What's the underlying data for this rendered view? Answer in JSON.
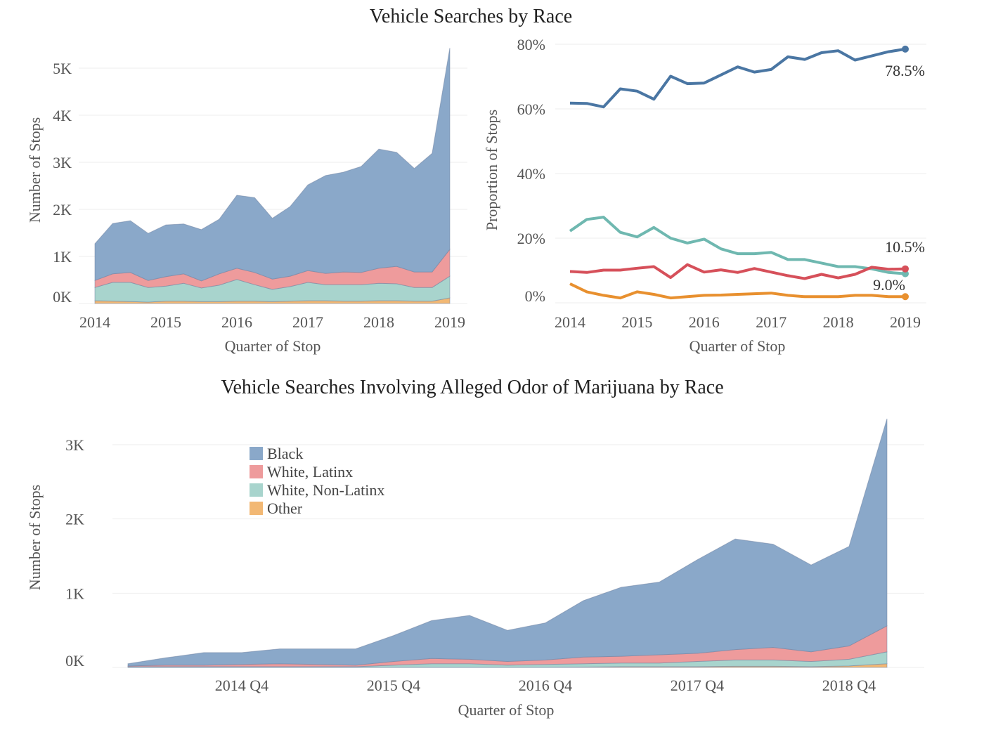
{
  "colors": {
    "Black": "#8aa8c9",
    "White, Latinx": "#ee9b9c",
    "White, Non-Latinx": "#a8d4cd",
    "Other": "#f2b874",
    "line_Black": "#4a76a3",
    "line_White, Latinx": "#d6505a",
    "line_White, Non-Latinx": "#6fb8b0",
    "line_Other": "#e8902f"
  },
  "chart_data": [
    {
      "id": "counts",
      "type": "area",
      "stacked": true,
      "title": "Vehicle Searches by Race",
      "xlabel": "Quarter of Stop",
      "ylabel": "Number of Stops",
      "x": [
        "2014 Q1",
        "2014 Q2",
        "2014 Q3",
        "2014 Q4",
        "2015 Q1",
        "2015 Q2",
        "2015 Q3",
        "2015 Q4",
        "2016 Q1",
        "2016 Q2",
        "2016 Q3",
        "2016 Q4",
        "2017 Q1",
        "2017 Q2",
        "2017 Q3",
        "2017 Q4",
        "2018 Q1",
        "2018 Q2",
        "2018 Q3",
        "2018 Q4",
        "2019 Q1"
      ],
      "x_ticks": [
        "2014",
        "2015",
        "2016",
        "2017",
        "2018",
        "2019"
      ],
      "y_ticks": [
        "0K",
        "1K",
        "2K",
        "3K",
        "4K",
        "5K"
      ],
      "ylim": [
        0,
        5600
      ],
      "grid": true,
      "series": [
        {
          "name": "Other",
          "values": [
            60,
            50,
            40,
            30,
            50,
            50,
            40,
            40,
            50,
            50,
            40,
            50,
            60,
            60,
            50,
            50,
            60,
            60,
            50,
            50,
            120
          ]
        },
        {
          "name": "White, Non-Latinx",
          "values": [
            280,
            400,
            410,
            310,
            320,
            380,
            290,
            350,
            460,
            350,
            260,
            310,
            390,
            340,
            350,
            350,
            370,
            360,
            290,
            290,
            460
          ]
        },
        {
          "name": "White, Latinx",
          "values": [
            150,
            180,
            210,
            150,
            200,
            200,
            150,
            240,
            240,
            260,
            220,
            220,
            250,
            240,
            270,
            260,
            320,
            370,
            330,
            330,
            570
          ]
        },
        {
          "name": "Black",
          "values": [
            780,
            1070,
            1100,
            1000,
            1100,
            1060,
            1090,
            1160,
            1550,
            1590,
            1290,
            1480,
            1820,
            2080,
            2120,
            2250,
            2530,
            2420,
            2200,
            2520,
            4280
          ]
        }
      ]
    },
    {
      "id": "proportions",
      "type": "line",
      "xlabel": "Quarter of Stop",
      "ylabel": "Proportion of Stops",
      "x": [
        "2014 Q1",
        "2014 Q2",
        "2014 Q3",
        "2014 Q4",
        "2015 Q1",
        "2015 Q2",
        "2015 Q3",
        "2015 Q4",
        "2016 Q1",
        "2016 Q2",
        "2016 Q3",
        "2016 Q4",
        "2017 Q1",
        "2017 Q2",
        "2017 Q3",
        "2017 Q4",
        "2018 Q1",
        "2018 Q2",
        "2018 Q3",
        "2018 Q4",
        "2019 Q1"
      ],
      "x_ticks": [
        "2014",
        "2015",
        "2016",
        "2017",
        "2018",
        "2019"
      ],
      "y_ticks": [
        "0%",
        "20%",
        "40%",
        "60%",
        "80%"
      ],
      "ylim": [
        0,
        80
      ],
      "grid": true,
      "series": [
        {
          "name": "Black",
          "values": [
            61.8,
            61.7,
            60.6,
            66.2,
            65.5,
            63.0,
            70.1,
            67.8,
            68.0,
            70.5,
            73.0,
            71.4,
            72.2,
            76.1,
            75.3,
            77.4,
            78.0,
            75.1,
            76.4,
            77.7,
            78.5
          ]
        },
        {
          "name": "White, Non-Latinx",
          "values": [
            22.2,
            25.8,
            26.5,
            21.8,
            20.4,
            23.3,
            20.0,
            18.5,
            19.7,
            16.7,
            15.2,
            15.2,
            15.6,
            13.4,
            13.4,
            12.3,
            11.2,
            11.2,
            10.5,
            9.4,
            9.0
          ]
        },
        {
          "name": "White, Latinx",
          "values": [
            9.7,
            9.4,
            10.1,
            10.1,
            10.7,
            11.2,
            7.8,
            11.8,
            9.5,
            10.2,
            9.4,
            10.6,
            9.5,
            8.4,
            7.5,
            8.8,
            7.7,
            8.8,
            11.0,
            10.4,
            10.5
          ]
        },
        {
          "name": "Other",
          "values": [
            5.9,
            3.4,
            2.3,
            1.5,
            3.4,
            2.6,
            1.5,
            1.9,
            2.3,
            2.4,
            2.6,
            2.8,
            3.0,
            2.3,
            1.9,
            1.9,
            1.9,
            2.3,
            2.3,
            1.9,
            1.9
          ]
        }
      ],
      "annotations": [
        "78.5%",
        "10.5%",
        "9.0%"
      ]
    },
    {
      "id": "marijuana",
      "type": "area",
      "stacked": true,
      "title": "Vehicle Searches Involving Alleged Odor of Marijuana by Race",
      "xlabel": "Quarter of Stop",
      "ylabel": "Number of Stops",
      "x": [
        "2014 Q1",
        "2014 Q2",
        "2014 Q3",
        "2014 Q4",
        "2015 Q1",
        "2015 Q2",
        "2015 Q3",
        "2015 Q4",
        "2016 Q1",
        "2016 Q2",
        "2016 Q3",
        "2016 Q4",
        "2017 Q1",
        "2017 Q2",
        "2017 Q3",
        "2017 Q4",
        "2018 Q1",
        "2018 Q2",
        "2018 Q3",
        "2018 Q4",
        "2019 Q1"
      ],
      "x_ticks": [
        "2014 Q4",
        "2015 Q4",
        "2016 Q4",
        "2017 Q4",
        "2018 Q4"
      ],
      "y_ticks": [
        "0K",
        "1K",
        "2K",
        "3K"
      ],
      "ylim": [
        0,
        3400
      ],
      "grid": true,
      "legend": {
        "position": "top-left",
        "entries": [
          "Black",
          "White, Latinx",
          "White, Non-Latinx",
          "Other"
        ]
      },
      "series": [
        {
          "name": "Other",
          "values": [
            0,
            0,
            0,
            0,
            0,
            0,
            0,
            0,
            0,
            0,
            0,
            0,
            5,
            10,
            10,
            10,
            15,
            15,
            10,
            20,
            50
          ]
        },
        {
          "name": "White, Non-Latinx",
          "values": [
            10,
            10,
            10,
            10,
            10,
            10,
            10,
            30,
            50,
            50,
            30,
            40,
            45,
            50,
            50,
            70,
            85,
            85,
            70,
            90,
            160
          ]
        },
        {
          "name": "White, Latinx",
          "values": [
            10,
            20,
            20,
            30,
            40,
            30,
            20,
            50,
            70,
            60,
            50,
            60,
            90,
            90,
            110,
            110,
            140,
            170,
            130,
            180,
            350
          ]
        },
        {
          "name": "Black",
          "values": [
            30,
            100,
            170,
            160,
            200,
            210,
            220,
            350,
            510,
            590,
            420,
            500,
            760,
            930,
            980,
            1260,
            1490,
            1390,
            1170,
            1340,
            2790
          ]
        }
      ]
    }
  ]
}
